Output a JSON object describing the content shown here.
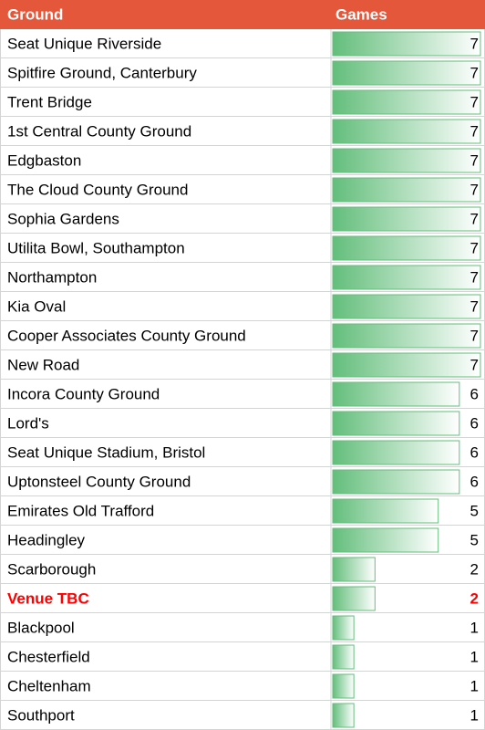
{
  "table": {
    "header": [
      "Ground",
      "Games"
    ],
    "header_color": "#e5573b",
    "bar_color": "#63be7b",
    "rows": [
      {
        "ground": "Seat Unique Riverside",
        "games": 7
      },
      {
        "ground": "Spitfire Ground, Canterbury",
        "games": 7
      },
      {
        "ground": "Trent Bridge",
        "games": 7
      },
      {
        "ground": "1st Central County Ground",
        "games": 7
      },
      {
        "ground": "Edgbaston",
        "games": 7
      },
      {
        "ground": "The Cloud County Ground",
        "games": 7
      },
      {
        "ground": "Sophia Gardens",
        "games": 7
      },
      {
        "ground": "Utilita Bowl, Southampton",
        "games": 7
      },
      {
        "ground": "Northampton",
        "games": 7
      },
      {
        "ground": "Kia Oval",
        "games": 7
      },
      {
        "ground": "Cooper Associates County Ground",
        "games": 7
      },
      {
        "ground": "New Road",
        "games": 7
      },
      {
        "ground": "Incora County Ground",
        "games": 6
      },
      {
        "ground": "Lord's",
        "games": 6
      },
      {
        "ground": "Seat Unique Stadium, Bristol",
        "games": 6
      },
      {
        "ground": "Uptonsteel County Ground",
        "games": 6
      },
      {
        "ground": "Emirates Old Trafford",
        "games": 5
      },
      {
        "ground": "Headingley",
        "games": 5
      },
      {
        "ground": "Scarborough",
        "games": 2
      },
      {
        "ground": "Venue TBC",
        "games": 2,
        "color": "#ff0000"
      },
      {
        "ground": "Blackpool",
        "games": 1
      },
      {
        "ground": "Chesterfield",
        "games": 1
      },
      {
        "ground": "Cheltenham",
        "games": 1
      },
      {
        "ground": "Southport",
        "games": 1
      }
    ]
  }
}
